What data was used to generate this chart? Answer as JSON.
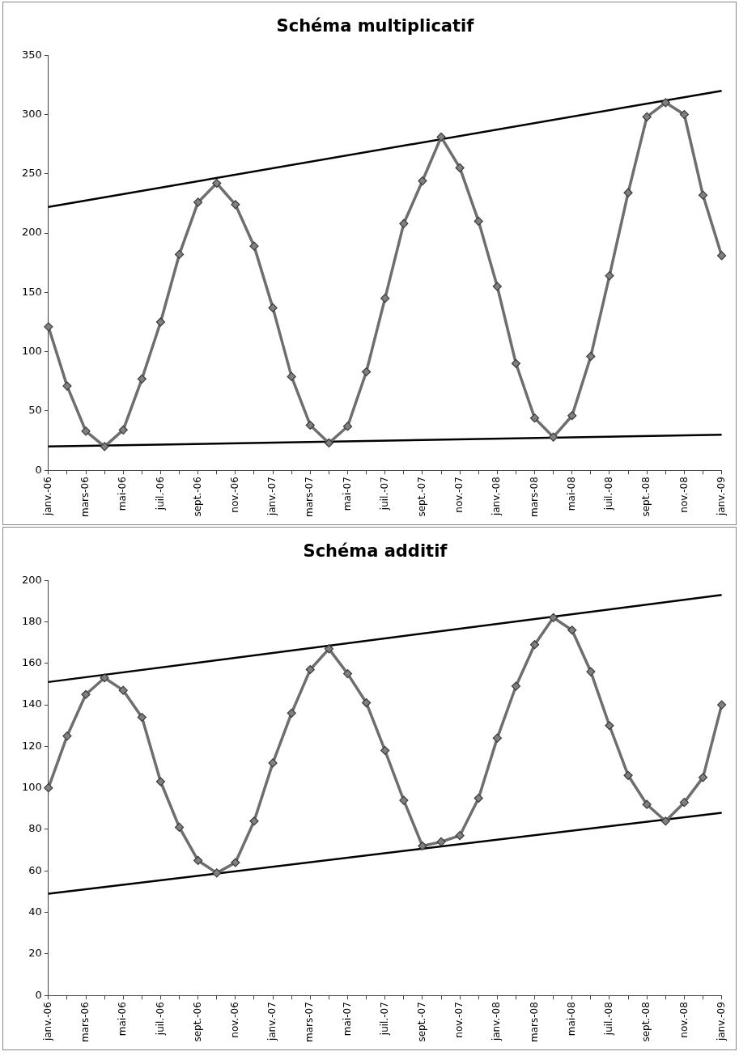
{
  "chart_data": [
    {
      "type": "line",
      "title": "Schéma multiplicatif",
      "categories": [
        "janv.-06",
        null,
        "mars-06",
        null,
        "mai-06",
        null,
        "juil.-06",
        null,
        "sept.-06",
        null,
        "nov.-06",
        null,
        "janv.-07",
        null,
        "mars-07",
        null,
        "mai-07",
        null,
        "juil.-07",
        null,
        "sept.-07",
        null,
        "nov.-07",
        null,
        "janv.-08",
        null,
        "mars-08",
        null,
        "mai-08",
        null,
        "juil.-08",
        null,
        "sept.-08",
        null,
        "nov.-08",
        null,
        "janv.-09"
      ],
      "series": [
        {
          "color": "#6e6e6e",
          "values": [
            121,
            71,
            33,
            20,
            34,
            77,
            125,
            182,
            226,
            242,
            224,
            189,
            137,
            79,
            38,
            23,
            37,
            83,
            145,
            208,
            244,
            281,
            255,
            210,
            155,
            90,
            44,
            28,
            46,
            96,
            164,
            234,
            298,
            310,
            300,
            232,
            181
          ]
        },
        {
          "color": "#000000",
          "marker": "none",
          "values": [
            222,
            null,
            null,
            null,
            null,
            null,
            null,
            null,
            null,
            null,
            null,
            null,
            null,
            null,
            null,
            null,
            null,
            null,
            null,
            null,
            null,
            null,
            null,
            null,
            null,
            null,
            null,
            null,
            null,
            null,
            null,
            null,
            null,
            null,
            null,
            null,
            320
          ]
        },
        {
          "color": "#000000",
          "marker": "none",
          "values": [
            20,
            null,
            null,
            null,
            null,
            null,
            null,
            null,
            null,
            null,
            null,
            null,
            null,
            null,
            null,
            null,
            null,
            null,
            null,
            null,
            null,
            null,
            null,
            null,
            null,
            null,
            null,
            null,
            null,
            null,
            null,
            null,
            null,
            null,
            null,
            null,
            30
          ]
        }
      ],
      "ylim": [
        0,
        350
      ],
      "yticks": [
        0,
        50,
        100,
        150,
        200,
        250,
        300,
        350
      ],
      "grid": false,
      "legend": false,
      "marker": "diamond",
      "line_style": "solid"
    },
    {
      "type": "line",
      "title": "Schéma additif",
      "categories": [
        "janv.-06",
        null,
        "mars-06",
        null,
        "mai-06",
        null,
        "juil.-06",
        null,
        "sept.-06",
        null,
        "nov.-06",
        null,
        "janv.-07",
        null,
        "mars-07",
        null,
        "mai-07",
        null,
        "juil.-07",
        null,
        "sept.-07",
        null,
        "nov.-07",
        null,
        "janv.-08",
        null,
        "mars-08",
        null,
        "mai-08",
        null,
        "juil.-08",
        null,
        "sept.-08",
        null,
        "nov.-08",
        null,
        "janv.-09"
      ],
      "series": [
        {
          "color": "#6e6e6e",
          "values": [
            100,
            125,
            145,
            153,
            147,
            134,
            103,
            81,
            65,
            59,
            64,
            84,
            112,
            136,
            157,
            167,
            155,
            141,
            118,
            94,
            72,
            74,
            77,
            95,
            124,
            149,
            169,
            182,
            176,
            156,
            130,
            106,
            92,
            84,
            93,
            105,
            140
          ]
        },
        {
          "color": "#000000",
          "marker": "none",
          "values": [
            151,
            null,
            null,
            null,
            null,
            null,
            null,
            null,
            null,
            null,
            null,
            null,
            null,
            null,
            null,
            null,
            null,
            null,
            null,
            null,
            null,
            null,
            null,
            null,
            null,
            null,
            null,
            null,
            null,
            null,
            null,
            null,
            null,
            null,
            null,
            null,
            193
          ]
        },
        {
          "color": "#000000",
          "marker": "none",
          "values": [
            49,
            null,
            null,
            null,
            null,
            null,
            null,
            null,
            null,
            null,
            null,
            null,
            null,
            null,
            null,
            null,
            null,
            null,
            null,
            null,
            null,
            null,
            null,
            null,
            null,
            null,
            null,
            null,
            null,
            null,
            null,
            null,
            null,
            null,
            null,
            null,
            88
          ]
        }
      ],
      "ylim": [
        0,
        200
      ],
      "yticks": [
        0,
        20,
        40,
        60,
        80,
        100,
        120,
        140,
        160,
        180,
        200
      ],
      "grid": false,
      "legend": false,
      "marker": "diamond",
      "line_style": "solid"
    }
  ]
}
